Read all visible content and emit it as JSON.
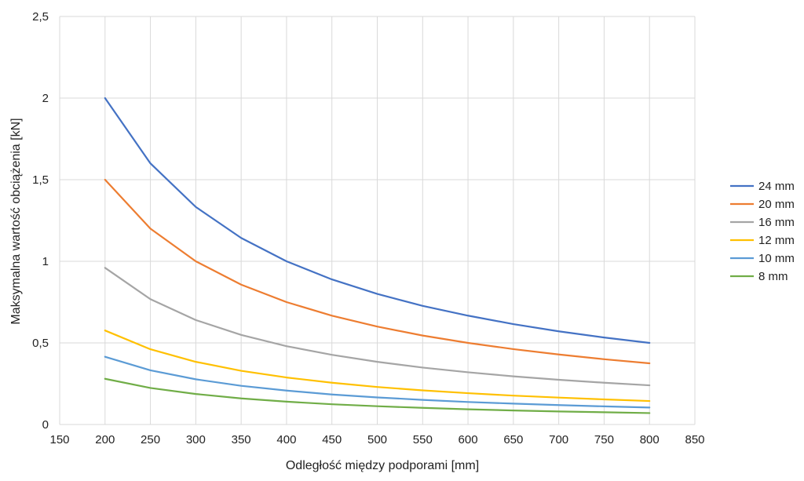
{
  "chart_data": {
    "type": "line",
    "xlabel": "Odległość między podporami [mm]",
    "ylabel": "Maksymalna wartość obciążenia [kN]",
    "xlim": [
      150,
      850
    ],
    "ylim": [
      0,
      2.5
    ],
    "x_ticks": [
      150,
      200,
      250,
      300,
      350,
      400,
      450,
      500,
      550,
      600,
      650,
      700,
      750,
      800,
      850
    ],
    "y_ticks": [
      0,
      0.5,
      1,
      1.5,
      2,
      2.5
    ],
    "y_tick_labels": [
      "0",
      "0,5",
      "1",
      "1,5",
      "2",
      "2,5"
    ],
    "grid": true,
    "legend_position": "right",
    "x": [
      200,
      250,
      300,
      350,
      400,
      450,
      500,
      550,
      600,
      650,
      700,
      750,
      800
    ],
    "series": [
      {
        "name": "24 mm",
        "color": "#4472C4",
        "values": [
          2.0,
          1.6,
          1.333,
          1.143,
          1.0,
          0.889,
          0.8,
          0.727,
          0.667,
          0.615,
          0.571,
          0.533,
          0.5
        ]
      },
      {
        "name": "20 mm",
        "color": "#ED7D31",
        "values": [
          1.5,
          1.2,
          1.0,
          0.857,
          0.75,
          0.667,
          0.6,
          0.545,
          0.5,
          0.462,
          0.429,
          0.4,
          0.375
        ]
      },
      {
        "name": "16 mm",
        "color": "#A5A5A5",
        "values": [
          0.96,
          0.768,
          0.64,
          0.549,
          0.48,
          0.427,
          0.384,
          0.349,
          0.32,
          0.295,
          0.274,
          0.256,
          0.24
        ]
      },
      {
        "name": "12 mm",
        "color": "#FFC000",
        "values": [
          0.576,
          0.461,
          0.384,
          0.329,
          0.288,
          0.256,
          0.23,
          0.209,
          0.192,
          0.177,
          0.165,
          0.154,
          0.144
        ]
      },
      {
        "name": "10 mm",
        "color": "#5B9BD5",
        "values": [
          0.415,
          0.332,
          0.277,
          0.237,
          0.208,
          0.184,
          0.166,
          0.151,
          0.138,
          0.128,
          0.119,
          0.111,
          0.104
        ]
      },
      {
        "name": "8 mm",
        "color": "#70AD47",
        "values": [
          0.28,
          0.224,
          0.187,
          0.16,
          0.14,
          0.124,
          0.112,
          0.102,
          0.093,
          0.086,
          0.08,
          0.075,
          0.07
        ]
      }
    ]
  }
}
